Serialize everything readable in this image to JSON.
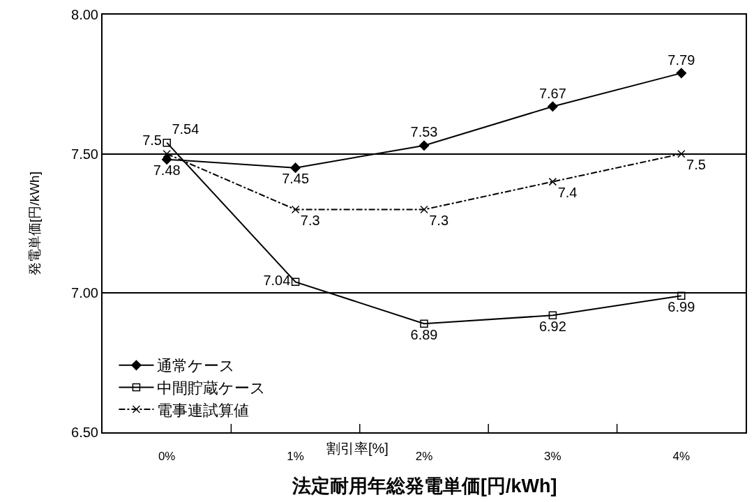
{
  "chart_data": {
    "type": "line",
    "title": "法定耐用年総発電単価[円/kWh]",
    "xlabel": "割引率[%]",
    "ylabel": "発電単価[円/kWh]",
    "categories": [
      "0%",
      "1%",
      "2%",
      "3%",
      "4%"
    ],
    "series": [
      {
        "name": "通常ケース",
        "color": "#000000",
        "values": [
          7.48,
          7.45,
          7.53,
          7.67,
          7.79
        ],
        "marker": "diamond",
        "line_style": "solid"
      },
      {
        "name": "中間貯蔵ケース",
        "color": "#000000",
        "values": [
          7.54,
          7.04,
          6.89,
          6.92,
          6.99
        ],
        "marker": "square",
        "line_style": "solid"
      },
      {
        "name": "電事連試算値",
        "color": "#000000",
        "values": [
          7.5,
          7.3,
          7.3,
          7.4,
          7.5
        ],
        "marker": "cross",
        "line_style": "dashed"
      }
    ],
    "ylim": [
      6.5,
      8.0
    ],
    "yticks": [
      {
        "value": 6.5,
        "label": "6.50"
      },
      {
        "value": 7.0,
        "label": "7.00"
      },
      {
        "value": 7.5,
        "label": "7.50"
      },
      {
        "value": 8.0,
        "label": "8.00"
      }
    ],
    "grid": "y",
    "legend": "bottom left",
    "data_labels": true
  }
}
